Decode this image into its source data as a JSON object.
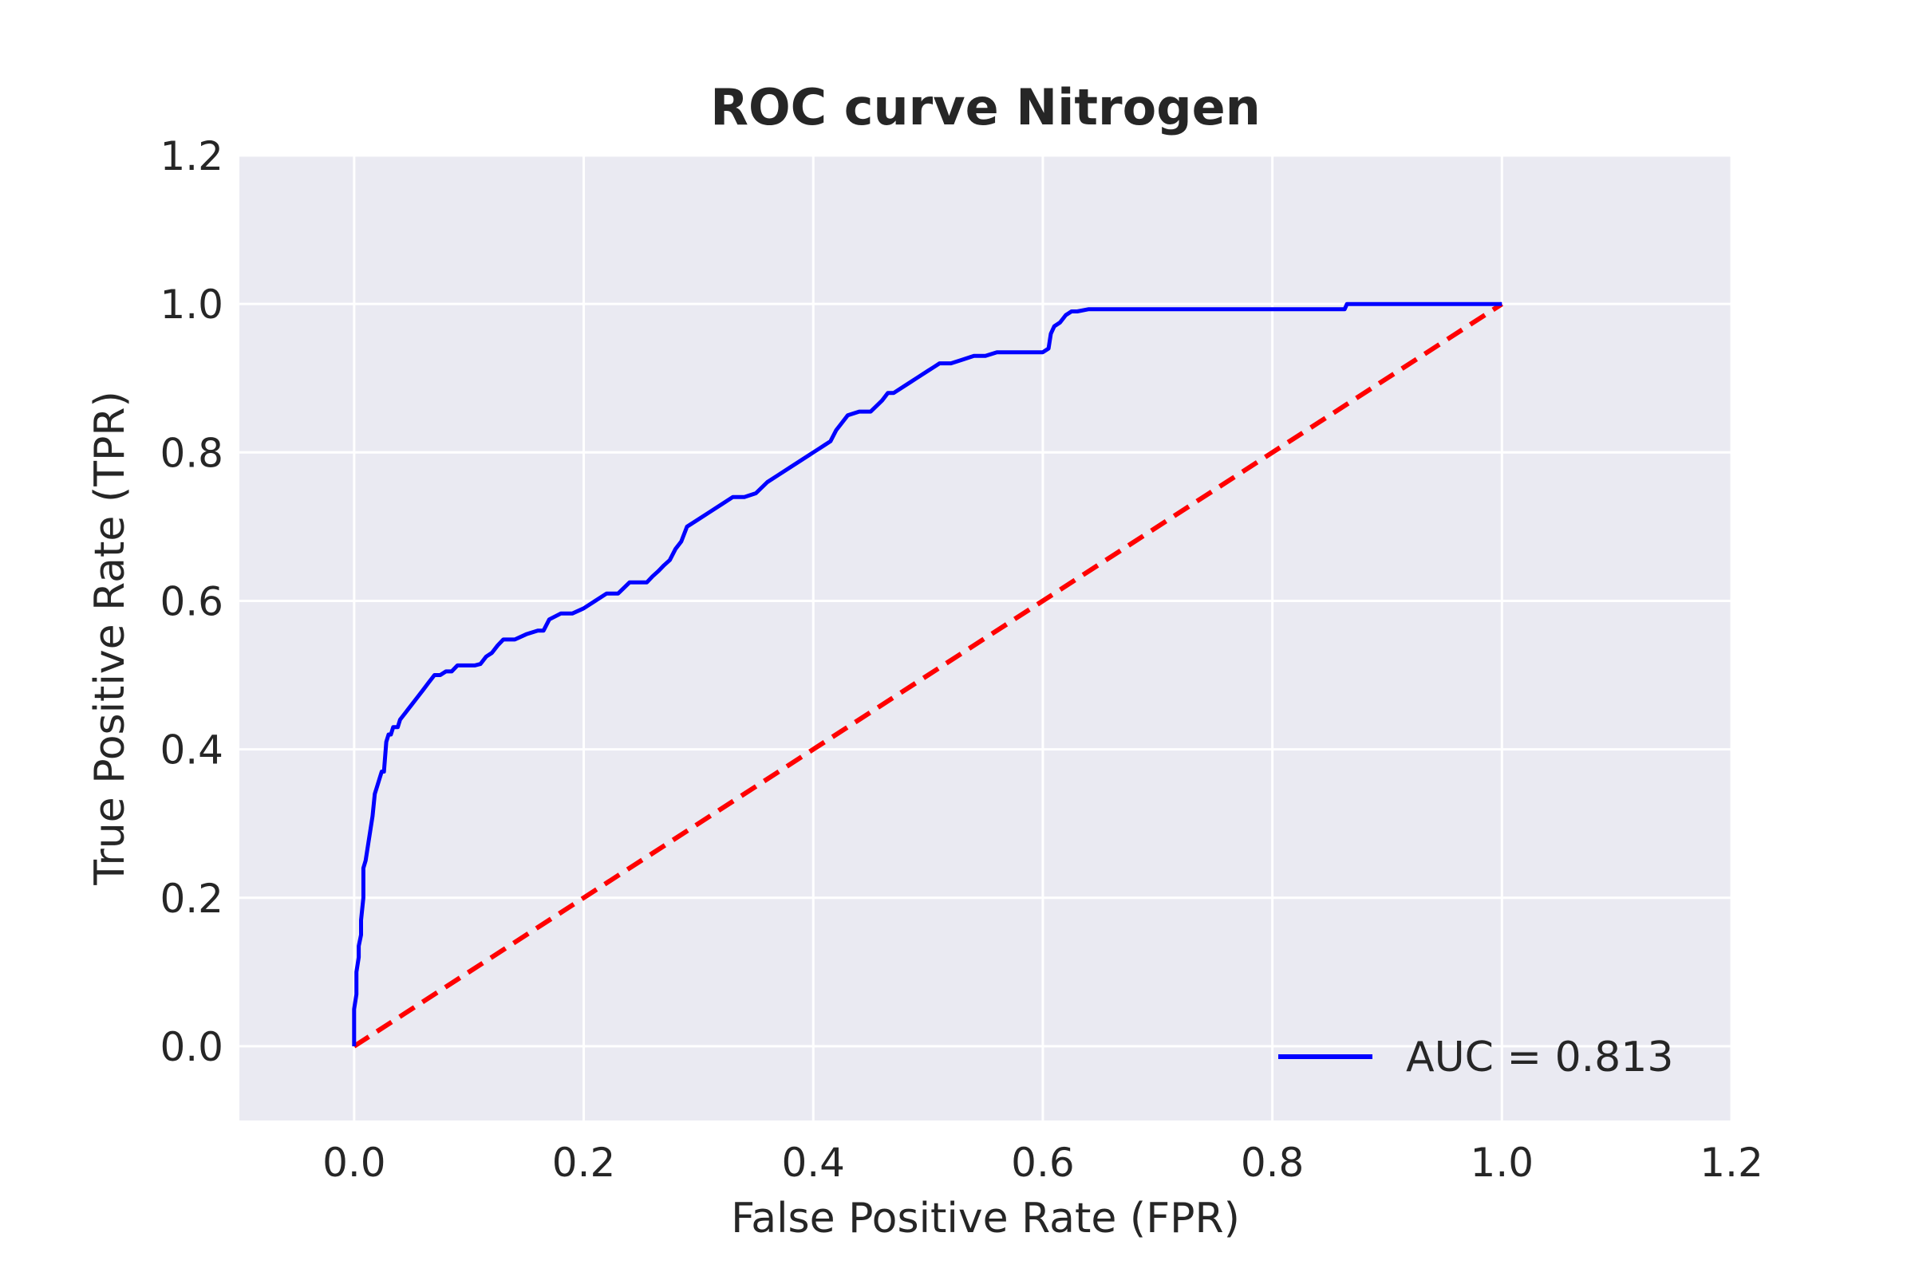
{
  "chart_data": {
    "type": "line",
    "title": "ROC curve Nitrogen",
    "xlabel": "False Positive Rate (FPR)",
    "ylabel": "True Positive Rate (TPR)",
    "xlim": [
      -0.1,
      1.2
    ],
    "ylim": [
      -0.1,
      1.2
    ],
    "xticks": [
      0.0,
      0.2,
      0.4,
      0.6,
      0.8,
      1.0,
      1.2
    ],
    "yticks": [
      0.0,
      0.2,
      0.4,
      0.6,
      0.8,
      1.0,
      1.2
    ],
    "xtick_labels": [
      "0.0",
      "0.2",
      "0.4",
      "0.6",
      "0.8",
      "1.0",
      "1.2"
    ],
    "ytick_labels": [
      "0.0",
      "0.2",
      "0.4",
      "0.6",
      "0.8",
      "1.0",
      "1.2"
    ],
    "grid": true,
    "legend_position": "bottom-right",
    "background_color": "#eaeaf2",
    "grid_color": "#ffffff",
    "series": [
      {
        "name": "AUC = 0.813",
        "color": "#0000ff",
        "style": "solid",
        "x": [
          0.0,
          0.0,
          0.002,
          0.002,
          0.004,
          0.004,
          0.006,
          0.006,
          0.008,
          0.008,
          0.01,
          0.01,
          0.012,
          0.014,
          0.016,
          0.018,
          0.02,
          0.022,
          0.024,
          0.026,
          0.028,
          0.03,
          0.032,
          0.034,
          0.036,
          0.038,
          0.04,
          0.045,
          0.05,
          0.05,
          0.055,
          0.055,
          0.06,
          0.06,
          0.065,
          0.065,
          0.07,
          0.075,
          0.08,
          0.085,
          0.09,
          0.095,
          0.1,
          0.105,
          0.11,
          0.115,
          0.12,
          0.125,
          0.13,
          0.14,
          0.15,
          0.16,
          0.165,
          0.17,
          0.18,
          0.19,
          0.2,
          0.21,
          0.22,
          0.23,
          0.24,
          0.25,
          0.255,
          0.26,
          0.265,
          0.27,
          0.275,
          0.28,
          0.285,
          0.29,
          0.3,
          0.31,
          0.32,
          0.33,
          0.34,
          0.35,
          0.36,
          0.37,
          0.38,
          0.39,
          0.4,
          0.405,
          0.41,
          0.415,
          0.42,
          0.425,
          0.43,
          0.44,
          0.45,
          0.46,
          0.465,
          0.47,
          0.48,
          0.49,
          0.5,
          0.505,
          0.51,
          0.52,
          0.53,
          0.54,
          0.55,
          0.56,
          0.57,
          0.58,
          0.59,
          0.6,
          0.605,
          0.607,
          0.61,
          0.615,
          0.62,
          0.625,
          0.63,
          0.64,
          0.7,
          0.8,
          0.85,
          0.863,
          0.865,
          0.9,
          1.0
        ],
        "y": [
          0.0,
          0.05,
          0.07,
          0.1,
          0.12,
          0.135,
          0.15,
          0.17,
          0.2,
          0.24,
          0.25,
          0.25,
          0.27,
          0.29,
          0.31,
          0.34,
          0.35,
          0.36,
          0.37,
          0.37,
          0.41,
          0.42,
          0.42,
          0.43,
          0.43,
          0.43,
          0.44,
          0.45,
          0.46,
          0.46,
          0.47,
          0.47,
          0.48,
          0.48,
          0.49,
          0.49,
          0.5,
          0.5,
          0.505,
          0.505,
          0.513,
          0.513,
          0.513,
          0.513,
          0.515,
          0.525,
          0.53,
          0.54,
          0.548,
          0.548,
          0.555,
          0.56,
          0.56,
          0.575,
          0.583,
          0.583,
          0.59,
          0.6,
          0.61,
          0.61,
          0.625,
          0.625,
          0.625,
          0.633,
          0.64,
          0.648,
          0.655,
          0.67,
          0.68,
          0.7,
          0.71,
          0.72,
          0.73,
          0.74,
          0.74,
          0.745,
          0.76,
          0.77,
          0.78,
          0.79,
          0.8,
          0.805,
          0.81,
          0.815,
          0.83,
          0.84,
          0.85,
          0.855,
          0.855,
          0.87,
          0.88,
          0.88,
          0.89,
          0.9,
          0.91,
          0.915,
          0.92,
          0.92,
          0.925,
          0.93,
          0.93,
          0.935,
          0.935,
          0.935,
          0.935,
          0.935,
          0.94,
          0.96,
          0.97,
          0.975,
          0.985,
          0.99,
          0.99,
          0.993,
          0.993,
          0.993,
          0.993,
          0.993,
          1.0,
          1.0,
          1.0
        ]
      },
      {
        "name": "",
        "color": "#ff0000",
        "style": "dashed",
        "x": [
          0.0,
          1.0
        ],
        "y": [
          0.0,
          1.0
        ]
      }
    ]
  }
}
